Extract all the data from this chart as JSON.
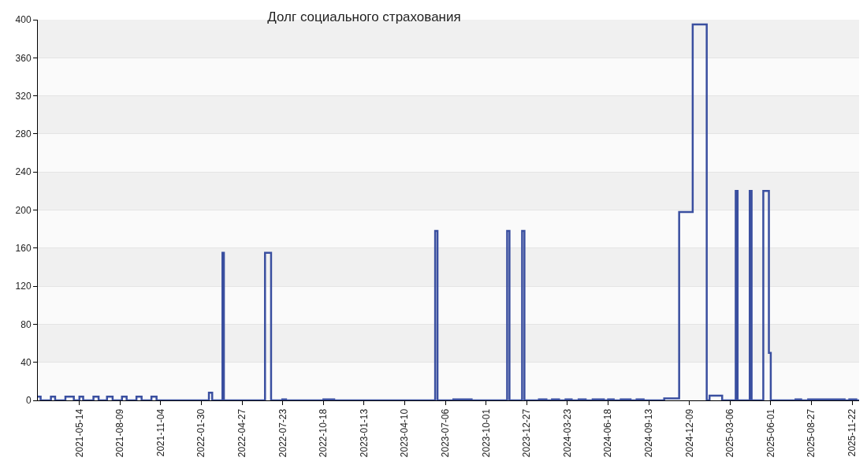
{
  "chart_data": {
    "type": "step",
    "title": "Долг социального страхования",
    "x": [
      "2021-02-14",
      "2021-02-20",
      "2021-03-14",
      "2021-03-23",
      "2021-04-14",
      "2021-05-02",
      "2021-05-14",
      "2021-05-22",
      "2021-06-13",
      "2021-06-24",
      "2021-07-12",
      "2021-07-24",
      "2021-08-13",
      "2021-08-23",
      "2021-09-13",
      "2021-09-24",
      "2021-10-15",
      "2021-10-26",
      "2022-02-15",
      "2022-02-22",
      "2022-03-16",
      "2022-03-19",
      "2022-06-15",
      "2022-06-28",
      "2022-07-22",
      "2022-07-30",
      "2022-10-18",
      "2022-11-10",
      "2023-06-14",
      "2023-06-19",
      "2023-07-23",
      "2023-08-31",
      "2023-11-15",
      "2023-11-20",
      "2023-12-17",
      "2023-12-22",
      "2024-01-22",
      "2024-02-07",
      "2024-02-19",
      "2024-03-05",
      "2024-03-19",
      "2024-04-01",
      "2024-04-16",
      "2024-05-01",
      "2024-05-16",
      "2024-06-09",
      "2024-06-18",
      "2024-06-30",
      "2024-07-15",
      "2024-08-05",
      "2024-08-18",
      "2024-09-02",
      "2024-10-16",
      "2024-11-17",
      "2024-12-16",
      "2025-01-15",
      "2025-01-21",
      "2025-02-17",
      "2025-03-18",
      "2025-03-22",
      "2025-04-17",
      "2025-04-21",
      "2025-05-16",
      "2025-05-28",
      "2025-06-01",
      "2025-07-24",
      "2025-08-05",
      "2025-08-20",
      "2025-11-06",
      "2025-11-16",
      "2025-12-01",
      "2025-12-07"
    ],
    "series": [
      {
        "color": "#3a4fa0",
        "values": [
          4,
          0,
          4,
          0,
          4,
          0,
          4,
          0,
          4,
          0,
          4,
          0,
          4,
          0,
          4,
          0,
          4,
          0,
          8,
          0,
          155,
          0,
          155,
          0,
          1,
          0,
          1,
          0,
          178,
          0,
          1,
          0,
          178,
          0,
          178,
          0,
          1,
          0,
          1,
          0,
          1,
          0,
          1,
          0,
          1,
          0,
          1,
          0,
          1,
          0,
          1,
          0,
          2,
          198,
          395,
          0,
          5,
          0,
          220,
          0,
          220,
          0,
          220,
          50,
          0,
          1,
          0,
          1,
          0,
          1,
          0,
          0
        ]
      }
    ],
    "xlim": [
      "2021-02-14",
      "2025-12-07"
    ],
    "xticks": [
      "2021-05-14",
      "2021-08-09",
      "2021-11-04",
      "2022-01-30",
      "2022-04-27",
      "2022-07-23",
      "2022-10-18",
      "2023-01-13",
      "2023-04-10",
      "2023-07-06",
      "2023-10-01",
      "2023-12-27",
      "2024-03-23",
      "2024-06-18",
      "2024-09-13",
      "2024-12-09",
      "2025-03-06",
      "2025-06-01",
      "2025-08-27",
      "2025-11-22"
    ],
    "ylim": [
      0,
      400
    ],
    "yticks": [
      0,
      40,
      80,
      120,
      160,
      200,
      240,
      280,
      320,
      360,
      400
    ],
    "grid": "y"
  }
}
